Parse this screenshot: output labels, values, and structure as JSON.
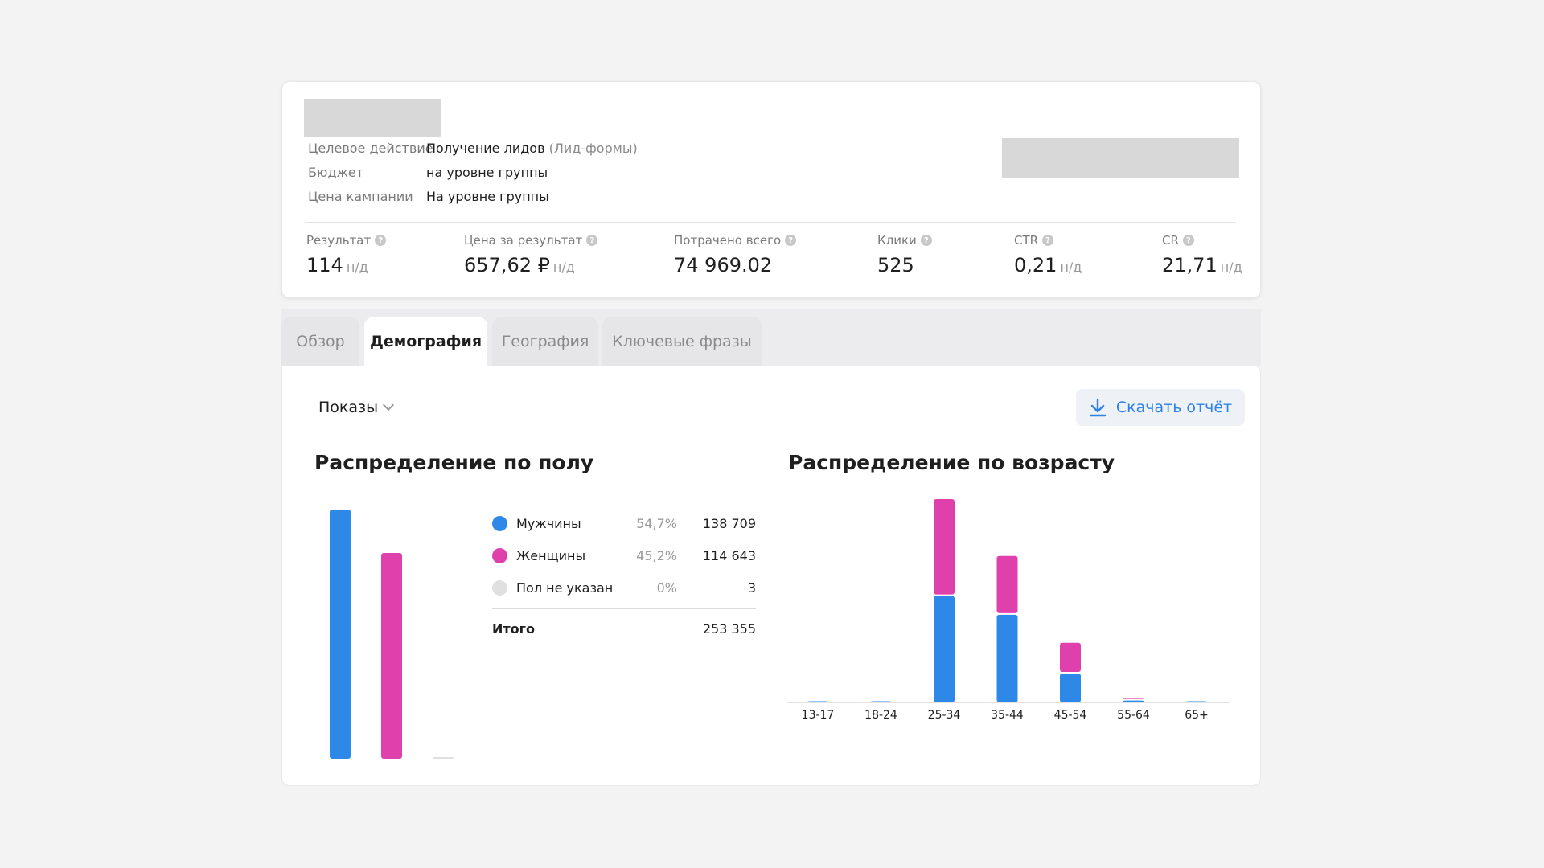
{
  "campaign": {
    "rows": [
      {
        "key": "Целевое действие",
        "value": "Получение лидов",
        "note": "(Лид-формы)"
      },
      {
        "key": "Бюджет",
        "value": "на уровне группы",
        "note": ""
      },
      {
        "key": "Цена кампании",
        "value": "На уровне группы",
        "note": ""
      }
    ]
  },
  "metrics": [
    {
      "label": "Результат",
      "value": "114",
      "suffix": "н/д"
    },
    {
      "label": "Цена за результат",
      "value": "657,62 ₽",
      "suffix": "н/д"
    },
    {
      "label": "Потрачено всего",
      "value": "74 969.02",
      "suffix": ""
    },
    {
      "label": "Клики",
      "value": "525",
      "suffix": ""
    },
    {
      "label": "CTR",
      "value": "0,21",
      "suffix": "н/д"
    },
    {
      "label": "CR",
      "value": "21,71",
      "suffix": "н/д"
    }
  ],
  "tabs": [
    {
      "label": "Обзор",
      "active": false
    },
    {
      "label": "Демография",
      "active": true
    },
    {
      "label": "География",
      "active": false
    },
    {
      "label": "Ключевые фразы",
      "active": false
    }
  ],
  "toolbar": {
    "metric_select": "Показы",
    "download_label": "Скачать отчёт"
  },
  "gender": {
    "title": "Распределение по полу",
    "legend": [
      {
        "name": "Мужчины",
        "pct": "54,7%",
        "value": "138 709",
        "color": "#2d88e8"
      },
      {
        "name": "Женщины",
        "pct": "45,2%",
        "value": "114 643",
        "color": "#e040ab"
      },
      {
        "name": "Пол не указан",
        "pct": "0%",
        "value": "3",
        "color": "#e0e0e0"
      }
    ],
    "total_label": "Итого",
    "total_value": "253 355"
  },
  "age": {
    "title": "Распределение по возрасту"
  },
  "chart_data": [
    {
      "type": "bar",
      "title": "Распределение по полу",
      "categories": [
        "Мужчины",
        "Женщины",
        "Пол не указан"
      ],
      "values": [
        138709,
        114643,
        3
      ],
      "colors": [
        "#2d88e8",
        "#e040ab",
        "#e0e0e0"
      ]
    },
    {
      "type": "bar",
      "stacked": true,
      "title": "Распределение по возрасту",
      "categories": [
        "13-17",
        "18-24",
        "25-34",
        "35-44",
        "45-54",
        "55-64",
        "65+"
      ],
      "series": [
        {
          "name": "Мужчины",
          "color": "#2d88e8",
          "values": [
            500,
            300,
            57000,
            47000,
            15500,
            1000,
            200
          ]
        },
        {
          "name": "Женщины",
          "color": "#e040ab",
          "values": [
            300,
            100,
            52000,
            31500,
            16500,
            1500,
            800
          ]
        }
      ],
      "ylim": [
        0,
        112000
      ]
    }
  ]
}
